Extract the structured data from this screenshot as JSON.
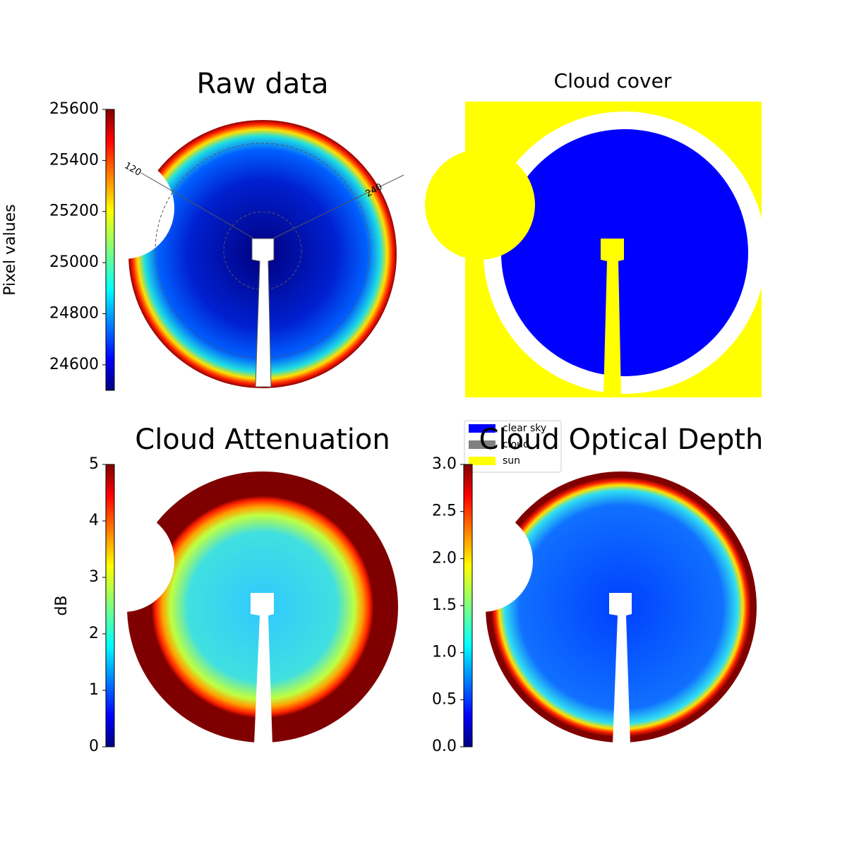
{
  "chart_data": [
    {
      "type": "image",
      "title": "Raw data",
      "colorbar": true,
      "ylabel": "Pixel values",
      "ylim": [
        24500,
        25600
      ],
      "yticks": [
        24600,
        24800,
        25000,
        25200,
        25400,
        25600
      ],
      "annotations": [
        "120",
        "240"
      ]
    },
    {
      "type": "image",
      "title": "Cloud cover",
      "colorbar": false,
      "series": [
        {
          "name": "clear sky",
          "color": "#0000ff"
        },
        {
          "name": "cloud",
          "color": "#808080"
        },
        {
          "name": "sun",
          "color": "#ffff00"
        }
      ]
    },
    {
      "type": "image",
      "title": "Cloud Attenuation",
      "colorbar": true,
      "ylabel": "dB",
      "ylim": [
        0,
        5
      ],
      "yticks": [
        0,
        1,
        2,
        3,
        4,
        5
      ]
    },
    {
      "type": "image",
      "title": "Cloud Optical Depth",
      "colorbar": true,
      "ylim": [
        0,
        3
      ],
      "yticks": [
        {
          "value": 0,
          "label": "0.0"
        },
        0.5,
        {
          "value": 1,
          "label": "1.0"
        },
        1.5,
        {
          "value": 2,
          "label": "2.0"
        },
        2.5,
        {
          "value": 3,
          "label": "3.0"
        }
      ]
    }
  ]
}
